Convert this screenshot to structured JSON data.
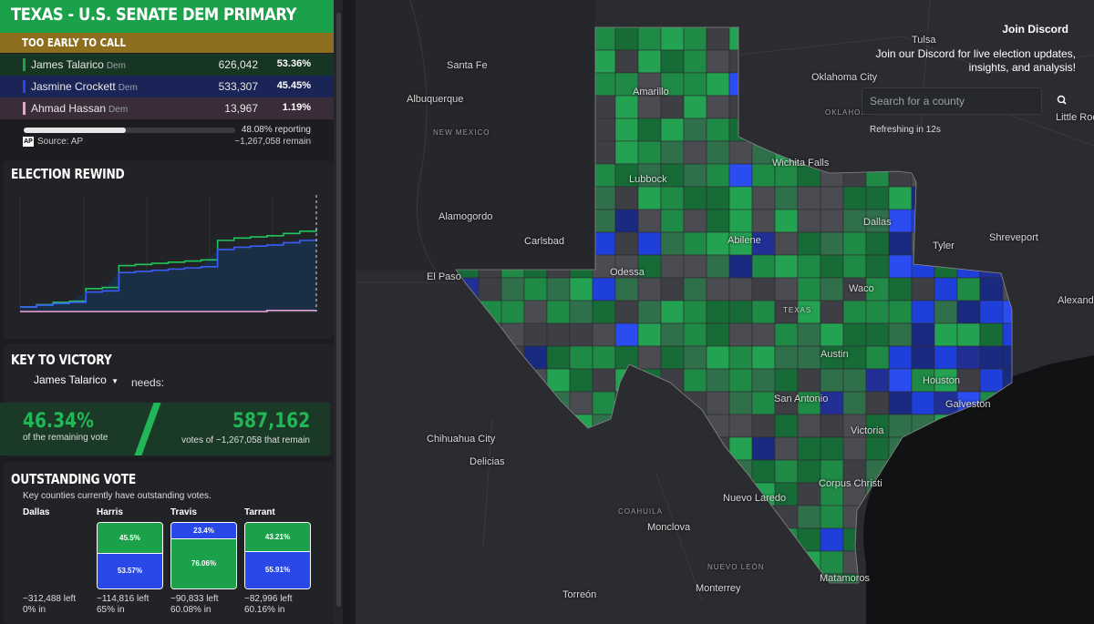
{
  "race": {
    "title": "TEXAS - U.S. SENATE DEM PRIMARY",
    "status": "TOO EARLY TO CALL",
    "candidates": [
      {
        "name": "James Talarico",
        "party": "Dem",
        "votes": "626,042",
        "pct": "53.36%",
        "color": "#1aa14a",
        "bg": "#173523"
      },
      {
        "name": "Jasmine Crockett",
        "party": "Dem",
        "votes": "533,307",
        "pct": "45.45%",
        "color": "#2a47e8",
        "bg": "#1b2456"
      },
      {
        "name": "Ahmad Hassan",
        "party": "Dem",
        "votes": "13,967",
        "pct": "1.19%",
        "color": "#e8a5d2",
        "bg": "#3a2c39"
      }
    ],
    "reporting": "48.08% reporting",
    "reporting_fraction": 0.4808,
    "source": "Source: AP",
    "ap_logo": "AP",
    "remain": "~1,267,058 remain"
  },
  "rewind": {
    "title": "ELECTION REWIND",
    "series": [
      {
        "color": "#21c45a",
        "points": [
          0.04,
          0.06,
          0.08,
          0.09,
          0.2,
          0.21,
          0.4,
          0.41,
          0.42,
          0.43,
          0.44,
          0.45,
          0.62,
          0.64,
          0.65,
          0.66,
          0.68,
          0.7,
          0.72
        ]
      },
      {
        "color": "#3b5cf5",
        "points": [
          0.04,
          0.055,
          0.07,
          0.08,
          0.17,
          0.18,
          0.34,
          0.35,
          0.36,
          0.37,
          0.38,
          0.39,
          0.54,
          0.56,
          0.57,
          0.58,
          0.6,
          0.62,
          0.63
        ]
      },
      {
        "color": "#f0a6d8",
        "points": [
          0.0,
          0.0,
          0.0,
          0.0,
          0.0,
          0.0,
          0.0,
          0.0,
          0.0,
          0.0,
          0.0,
          0.0,
          0.0,
          0.0,
          0.0,
          0.01,
          0.01,
          0.01,
          0.01
        ]
      }
    ]
  },
  "victory": {
    "title": "KEY TO VICTORY",
    "selected_candidate": "James Talarico",
    "needs_label": "needs:",
    "pct": "46.34%",
    "pct_sub": "of the remaining vote",
    "votes": "587,162",
    "votes_sub": "votes of ~1,267,058 that remain"
  },
  "outstanding": {
    "title": "OUTSTANDING VOTE",
    "subtitle": "Key counties currently have outstanding votes.",
    "counties": [
      {
        "name": "Dallas",
        "left": "~312,488 left",
        "in": "0% in",
        "green": null,
        "blue": null
      },
      {
        "name": "Harris",
        "left": "~114,816 left",
        "in": "65% in",
        "green": "45.5%",
        "green_frac": 0.455,
        "blue": "53.57%",
        "blue_frac": 0.5357,
        "green_top": true
      },
      {
        "name": "Travis",
        "left": "~90,833 left",
        "in": "60.08% in",
        "green": "76.06%",
        "green_frac": 0.7606,
        "blue": "23.4%",
        "blue_frac": 0.234,
        "green_top": false
      },
      {
        "name": "Tarrant",
        "left": "~82,996 left",
        "in": "60.16% in",
        "green": "43.21%",
        "green_frac": 0.4321,
        "blue": "55.91%",
        "blue_frac": 0.5591,
        "green_top": true
      }
    ]
  },
  "map": {
    "labels": {
      "tulsa": "Tulsa",
      "santa_fe": "Santa Fe",
      "oklahoma_city": "Oklahoma City",
      "oklahoma": "OKLAHOMA",
      "albuquerque": "Albuquerque",
      "amarillo": "Amarillo",
      "new_mexico": "NEW MEXICO",
      "little_rock": "Little Rock",
      "wichita_falls": "Wichita Falls",
      "lubbock": "Lubbock",
      "alamogordo": "Alamogordo",
      "dallas": "Dallas",
      "carlsbad": "Carlsbad",
      "abilene": "Abilene",
      "tyler": "Tyler",
      "shreveport": "Shreveport",
      "el_paso": "El Paso",
      "odessa": "Odessa",
      "waco": "Waco",
      "alexandria": "Alexandria",
      "texas": "TEXAS",
      "austin": "Austin",
      "houston": "Houston",
      "san_antonio": "San Antonio",
      "galveston": "Galveston",
      "chihuahua_city": "Chihuahua City",
      "victoria": "Victoria",
      "delicias": "Delicias",
      "corpus_christi": "Corpus Christi",
      "coahuila": "COAHUILA",
      "nuevo_laredo": "Nuevo Laredo",
      "monclova": "Monclova",
      "nuevo_leon": "NUEVO LEÓN",
      "matamoros": "Matamoros",
      "monterrey": "Monterrey",
      "torreon": "Torreón"
    }
  },
  "search": {
    "placeholder": "Search for a county"
  },
  "refresh": "Refreshing in 12s",
  "discord": {
    "title": "Join Discord",
    "subtitle": "Join our Discord for live election updates, insights, and analysis!"
  },
  "colors": {
    "green": "#1aa14a",
    "blue": "#2a47e8",
    "gray": "#4a4c52"
  }
}
